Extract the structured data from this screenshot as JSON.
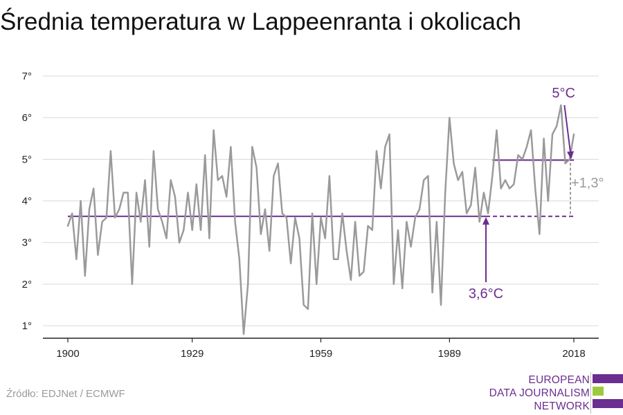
{
  "title": "Średnia temperatura w Lappeenranta i okolicach",
  "source": "Źródło: EDJNet / ECMWF",
  "logo": {
    "lines": [
      "EUROPEAN",
      "DATA JOURNALISM",
      "NETWORK"
    ],
    "colors": [
      "#6b2d90",
      "#9bcb3c",
      "#6b2d90"
    ]
  },
  "colors": {
    "series": "#9a9a9a",
    "accent": "#6b2d90",
    "diff": "#9a9a9a",
    "grid": "#d8d8d8",
    "axis": "#222222"
  },
  "chart_data": {
    "type": "line",
    "title": "Średnia temperatura w Lappeenranta i okolicach",
    "xlabel": "",
    "ylabel": "",
    "xlim": [
      1900,
      2018
    ],
    "ylim": [
      0.7,
      7.2
    ],
    "x_ticks": [
      1900,
      1929,
      1959,
      1989,
      2018
    ],
    "y_ticks": [
      1,
      2,
      3,
      4,
      5,
      6,
      7
    ],
    "y_tick_labels": [
      "1°",
      "2°",
      "3°",
      "4°",
      "5°",
      "6°",
      "7°"
    ],
    "grid": true,
    "series": [
      {
        "x": [
          1900,
          1901,
          1902,
          1903,
          1904,
          1905,
          1906,
          1907,
          1908,
          1909,
          1910,
          1911,
          1912,
          1913,
          1914,
          1915,
          1916,
          1917,
          1918,
          1919,
          1920,
          1921,
          1922,
          1923,
          1924,
          1925,
          1926,
          1927,
          1928,
          1929,
          1930,
          1931,
          1932,
          1933,
          1934,
          1935,
          1936,
          1937,
          1938,
          1939,
          1940,
          1941,
          1942,
          1943,
          1944,
          1945,
          1946,
          1947,
          1948,
          1949,
          1950,
          1951,
          1952,
          1953,
          1954,
          1955,
          1956,
          1957,
          1958,
          1959,
          1960,
          1961,
          1962,
          1963,
          1964,
          1965,
          1966,
          1967,
          1968,
          1969,
          1970,
          1971,
          1972,
          1973,
          1974,
          1975,
          1976,
          1977,
          1978,
          1979,
          1980,
          1981,
          1982,
          1983,
          1984,
          1985,
          1986,
          1987,
          1988,
          1989,
          1990,
          1991,
          1992,
          1993,
          1994,
          1995,
          1996,
          1997,
          1998,
          1999,
          2000,
          2001,
          2002,
          2003,
          2004,
          2005,
          2006,
          2007,
          2008,
          2009,
          2010,
          2011,
          2012,
          2013,
          2014,
          2015,
          2016,
          2017,
          2018
        ],
        "values": [
          3.4,
          3.7,
          2.6,
          4.0,
          2.2,
          3.8,
          4.3,
          2.7,
          3.5,
          3.6,
          5.2,
          3.6,
          3.8,
          4.2,
          4.2,
          2.0,
          4.2,
          3.5,
          4.5,
          2.9,
          5.2,
          3.8,
          3.5,
          3.1,
          4.5,
          4.1,
          3.0,
          3.3,
          4.2,
          3.3,
          4.4,
          3.3,
          5.1,
          3.1,
          5.7,
          4.5,
          4.6,
          4.1,
          5.3,
          3.5,
          2.6,
          0.8,
          2.0,
          5.3,
          4.8,
          3.2,
          3.8,
          2.8,
          4.6,
          4.9,
          3.7,
          3.6,
          2.5,
          3.6,
          3.1,
          1.5,
          1.4,
          3.7,
          2.0,
          3.6,
          3.1,
          4.6,
          2.6,
          2.6,
          3.7,
          2.8,
          2.1,
          3.5,
          2.2,
          2.3,
          3.4,
          3.3,
          5.2,
          4.3,
          5.3,
          5.6,
          2.0,
          3.3,
          1.9,
          3.5,
          2.9,
          3.6,
          3.8,
          4.5,
          4.6,
          1.8,
          3.5,
          1.5,
          4.2,
          6.0,
          4.9,
          4.5,
          4.7,
          3.7,
          3.9,
          4.8,
          3.5,
          4.2,
          3.7,
          4.6,
          5.7,
          4.3,
          4.5,
          4.3,
          4.4,
          5.1,
          5.0,
          5.3,
          5.7,
          4.3,
          3.2,
          5.5,
          4.0,
          5.6,
          5.8,
          6.3,
          4.9,
          5.0,
          5.6
        ]
      }
    ],
    "reference_lines": [
      {
        "value": 3.63,
        "label": "3,6°C"
      },
      {
        "value": 4.98,
        "label": "5°C"
      }
    ],
    "difference_label": "+1,3°"
  }
}
